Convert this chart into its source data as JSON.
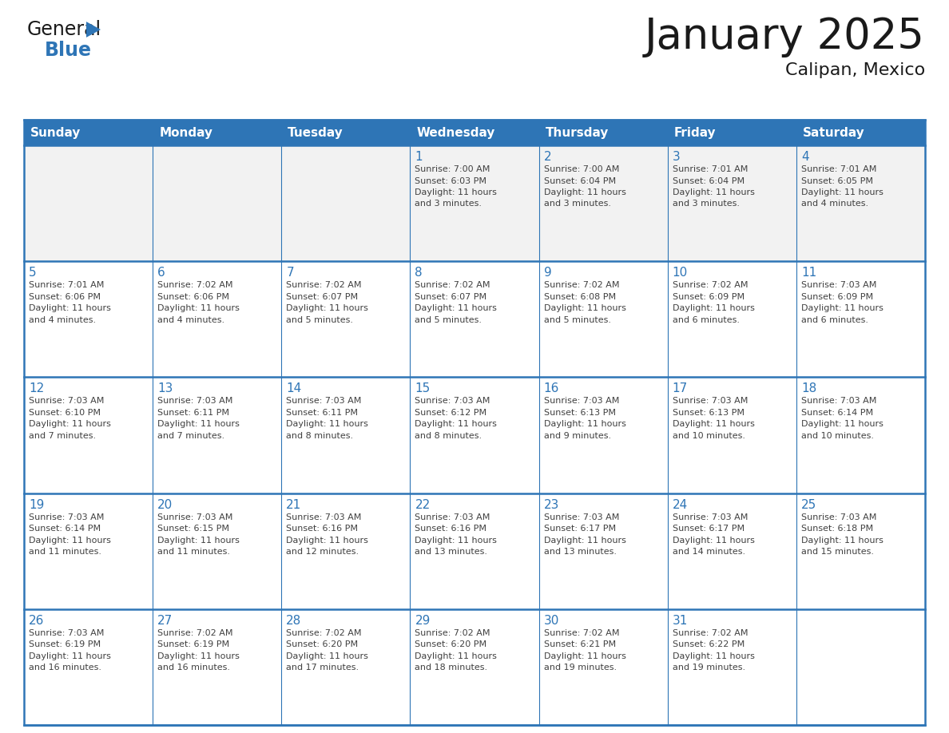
{
  "title": "January 2025",
  "subtitle": "Calipan, Mexico",
  "header_bg_color": "#2E75B6",
  "header_text_color": "#FFFFFF",
  "cell_bg_even": "#FFFFFF",
  "cell_bg_odd": "#F2F2F2",
  "cell_text_color": "#404040",
  "day_number_color": "#2E75B6",
  "grid_color": "#2E75B6",
  "grid_line_color": "#2E75B6",
  "days_of_week": [
    "Sunday",
    "Monday",
    "Tuesday",
    "Wednesday",
    "Thursday",
    "Friday",
    "Saturday"
  ],
  "weeks": [
    [
      {
        "day": "",
        "lines": []
      },
      {
        "day": "",
        "lines": []
      },
      {
        "day": "",
        "lines": []
      },
      {
        "day": "1",
        "lines": [
          "Sunrise: 7:00 AM",
          "Sunset: 6:03 PM",
          "Daylight: 11 hours",
          "and 3 minutes."
        ]
      },
      {
        "day": "2",
        "lines": [
          "Sunrise: 7:00 AM",
          "Sunset: 6:04 PM",
          "Daylight: 11 hours",
          "and 3 minutes."
        ]
      },
      {
        "day": "3",
        "lines": [
          "Sunrise: 7:01 AM",
          "Sunset: 6:04 PM",
          "Daylight: 11 hours",
          "and 3 minutes."
        ]
      },
      {
        "day": "4",
        "lines": [
          "Sunrise: 7:01 AM",
          "Sunset: 6:05 PM",
          "Daylight: 11 hours",
          "and 4 minutes."
        ]
      }
    ],
    [
      {
        "day": "5",
        "lines": [
          "Sunrise: 7:01 AM",
          "Sunset: 6:06 PM",
          "Daylight: 11 hours",
          "and 4 minutes."
        ]
      },
      {
        "day": "6",
        "lines": [
          "Sunrise: 7:02 AM",
          "Sunset: 6:06 PM",
          "Daylight: 11 hours",
          "and 4 minutes."
        ]
      },
      {
        "day": "7",
        "lines": [
          "Sunrise: 7:02 AM",
          "Sunset: 6:07 PM",
          "Daylight: 11 hours",
          "and 5 minutes."
        ]
      },
      {
        "day": "8",
        "lines": [
          "Sunrise: 7:02 AM",
          "Sunset: 6:07 PM",
          "Daylight: 11 hours",
          "and 5 minutes."
        ]
      },
      {
        "day": "9",
        "lines": [
          "Sunrise: 7:02 AM",
          "Sunset: 6:08 PM",
          "Daylight: 11 hours",
          "and 5 minutes."
        ]
      },
      {
        "day": "10",
        "lines": [
          "Sunrise: 7:02 AM",
          "Sunset: 6:09 PM",
          "Daylight: 11 hours",
          "and 6 minutes."
        ]
      },
      {
        "day": "11",
        "lines": [
          "Sunrise: 7:03 AM",
          "Sunset: 6:09 PM",
          "Daylight: 11 hours",
          "and 6 minutes."
        ]
      }
    ],
    [
      {
        "day": "12",
        "lines": [
          "Sunrise: 7:03 AM",
          "Sunset: 6:10 PM",
          "Daylight: 11 hours",
          "and 7 minutes."
        ]
      },
      {
        "day": "13",
        "lines": [
          "Sunrise: 7:03 AM",
          "Sunset: 6:11 PM",
          "Daylight: 11 hours",
          "and 7 minutes."
        ]
      },
      {
        "day": "14",
        "lines": [
          "Sunrise: 7:03 AM",
          "Sunset: 6:11 PM",
          "Daylight: 11 hours",
          "and 8 minutes."
        ]
      },
      {
        "day": "15",
        "lines": [
          "Sunrise: 7:03 AM",
          "Sunset: 6:12 PM",
          "Daylight: 11 hours",
          "and 8 minutes."
        ]
      },
      {
        "day": "16",
        "lines": [
          "Sunrise: 7:03 AM",
          "Sunset: 6:13 PM",
          "Daylight: 11 hours",
          "and 9 minutes."
        ]
      },
      {
        "day": "17",
        "lines": [
          "Sunrise: 7:03 AM",
          "Sunset: 6:13 PM",
          "Daylight: 11 hours",
          "and 10 minutes."
        ]
      },
      {
        "day": "18",
        "lines": [
          "Sunrise: 7:03 AM",
          "Sunset: 6:14 PM",
          "Daylight: 11 hours",
          "and 10 minutes."
        ]
      }
    ],
    [
      {
        "day": "19",
        "lines": [
          "Sunrise: 7:03 AM",
          "Sunset: 6:14 PM",
          "Daylight: 11 hours",
          "and 11 minutes."
        ]
      },
      {
        "day": "20",
        "lines": [
          "Sunrise: 7:03 AM",
          "Sunset: 6:15 PM",
          "Daylight: 11 hours",
          "and 11 minutes."
        ]
      },
      {
        "day": "21",
        "lines": [
          "Sunrise: 7:03 AM",
          "Sunset: 6:16 PM",
          "Daylight: 11 hours",
          "and 12 minutes."
        ]
      },
      {
        "day": "22",
        "lines": [
          "Sunrise: 7:03 AM",
          "Sunset: 6:16 PM",
          "Daylight: 11 hours",
          "and 13 minutes."
        ]
      },
      {
        "day": "23",
        "lines": [
          "Sunrise: 7:03 AM",
          "Sunset: 6:17 PM",
          "Daylight: 11 hours",
          "and 13 minutes."
        ]
      },
      {
        "day": "24",
        "lines": [
          "Sunrise: 7:03 AM",
          "Sunset: 6:17 PM",
          "Daylight: 11 hours",
          "and 14 minutes."
        ]
      },
      {
        "day": "25",
        "lines": [
          "Sunrise: 7:03 AM",
          "Sunset: 6:18 PM",
          "Daylight: 11 hours",
          "and 15 minutes."
        ]
      }
    ],
    [
      {
        "day": "26",
        "lines": [
          "Sunrise: 7:03 AM",
          "Sunset: 6:19 PM",
          "Daylight: 11 hours",
          "and 16 minutes."
        ]
      },
      {
        "day": "27",
        "lines": [
          "Sunrise: 7:02 AM",
          "Sunset: 6:19 PM",
          "Daylight: 11 hours",
          "and 16 minutes."
        ]
      },
      {
        "day": "28",
        "lines": [
          "Sunrise: 7:02 AM",
          "Sunset: 6:20 PM",
          "Daylight: 11 hours",
          "and 17 minutes."
        ]
      },
      {
        "day": "29",
        "lines": [
          "Sunrise: 7:02 AM",
          "Sunset: 6:20 PM",
          "Daylight: 11 hours",
          "and 18 minutes."
        ]
      },
      {
        "day": "30",
        "lines": [
          "Sunrise: 7:02 AM",
          "Sunset: 6:21 PM",
          "Daylight: 11 hours",
          "and 19 minutes."
        ]
      },
      {
        "day": "31",
        "lines": [
          "Sunrise: 7:02 AM",
          "Sunset: 6:22 PM",
          "Daylight: 11 hours",
          "and 19 minutes."
        ]
      },
      {
        "day": "",
        "lines": []
      }
    ]
  ],
  "logo_general_color": "#1a1a1a",
  "logo_blue_color": "#2E75B6",
  "logo_triangle_color": "#2E75B6",
  "title_fontsize": 38,
  "subtitle_fontsize": 16,
  "dow_fontsize": 11,
  "day_num_fontsize": 11,
  "info_fontsize": 8
}
